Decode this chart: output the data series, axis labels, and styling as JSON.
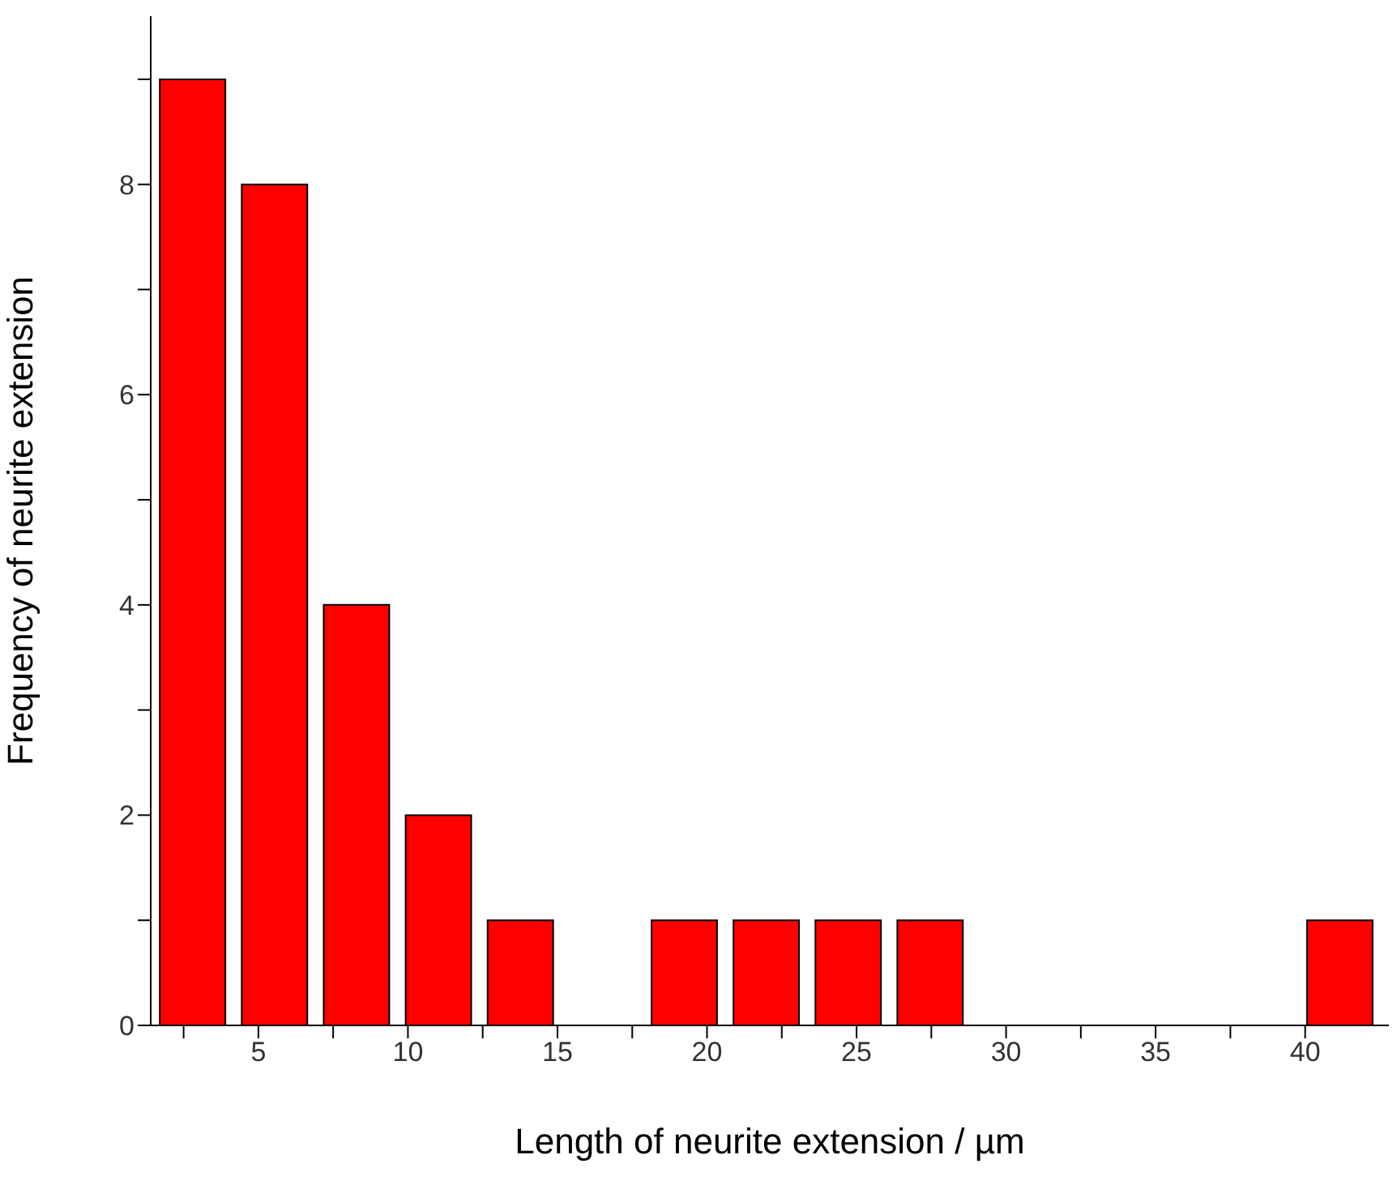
{
  "chart_data": {
    "type": "bar",
    "xlabel": "Length of neurite extension / µm",
    "ylabel": "Frequency of neurite extension",
    "x": [
      2.8,
      5.54,
      8.28,
      11.02,
      13.76,
      16.5,
      19.24,
      21.98,
      24.72,
      27.46,
      30.2,
      32.94,
      35.68,
      38.42,
      41.16
    ],
    "values": [
      9,
      8,
      4,
      2,
      1,
      0,
      1,
      1,
      1,
      1,
      0,
      0,
      0,
      0,
      1
    ],
    "color": "#ff0000",
    "xlim": [
      1.4,
      42.8
    ],
    "xticks": [
      {
        "value": 2.5,
        "label": null
      },
      5,
      {
        "value": 7.5,
        "label": null
      },
      10,
      {
        "value": 12.5,
        "label": null
      },
      15,
      {
        "value": 17.5,
        "label": null
      },
      20,
      {
        "value": 22.5,
        "label": null
      },
      25,
      {
        "value": 27.5,
        "label": null
      },
      30,
      {
        "value": 32.5,
        "label": null
      },
      35,
      {
        "value": 37.5,
        "label": null
      },
      40
    ],
    "ylim": [
      0,
      9.6
    ],
    "yticks": [
      0,
      {
        "value": 1,
        "label": null
      },
      2,
      {
        "value": 3,
        "label": null
      },
      4,
      {
        "value": 5,
        "label": null
      },
      6,
      {
        "value": 7,
        "label": null
      },
      8,
      {
        "value": 9,
        "label": null
      }
    ],
    "grid": false
  }
}
